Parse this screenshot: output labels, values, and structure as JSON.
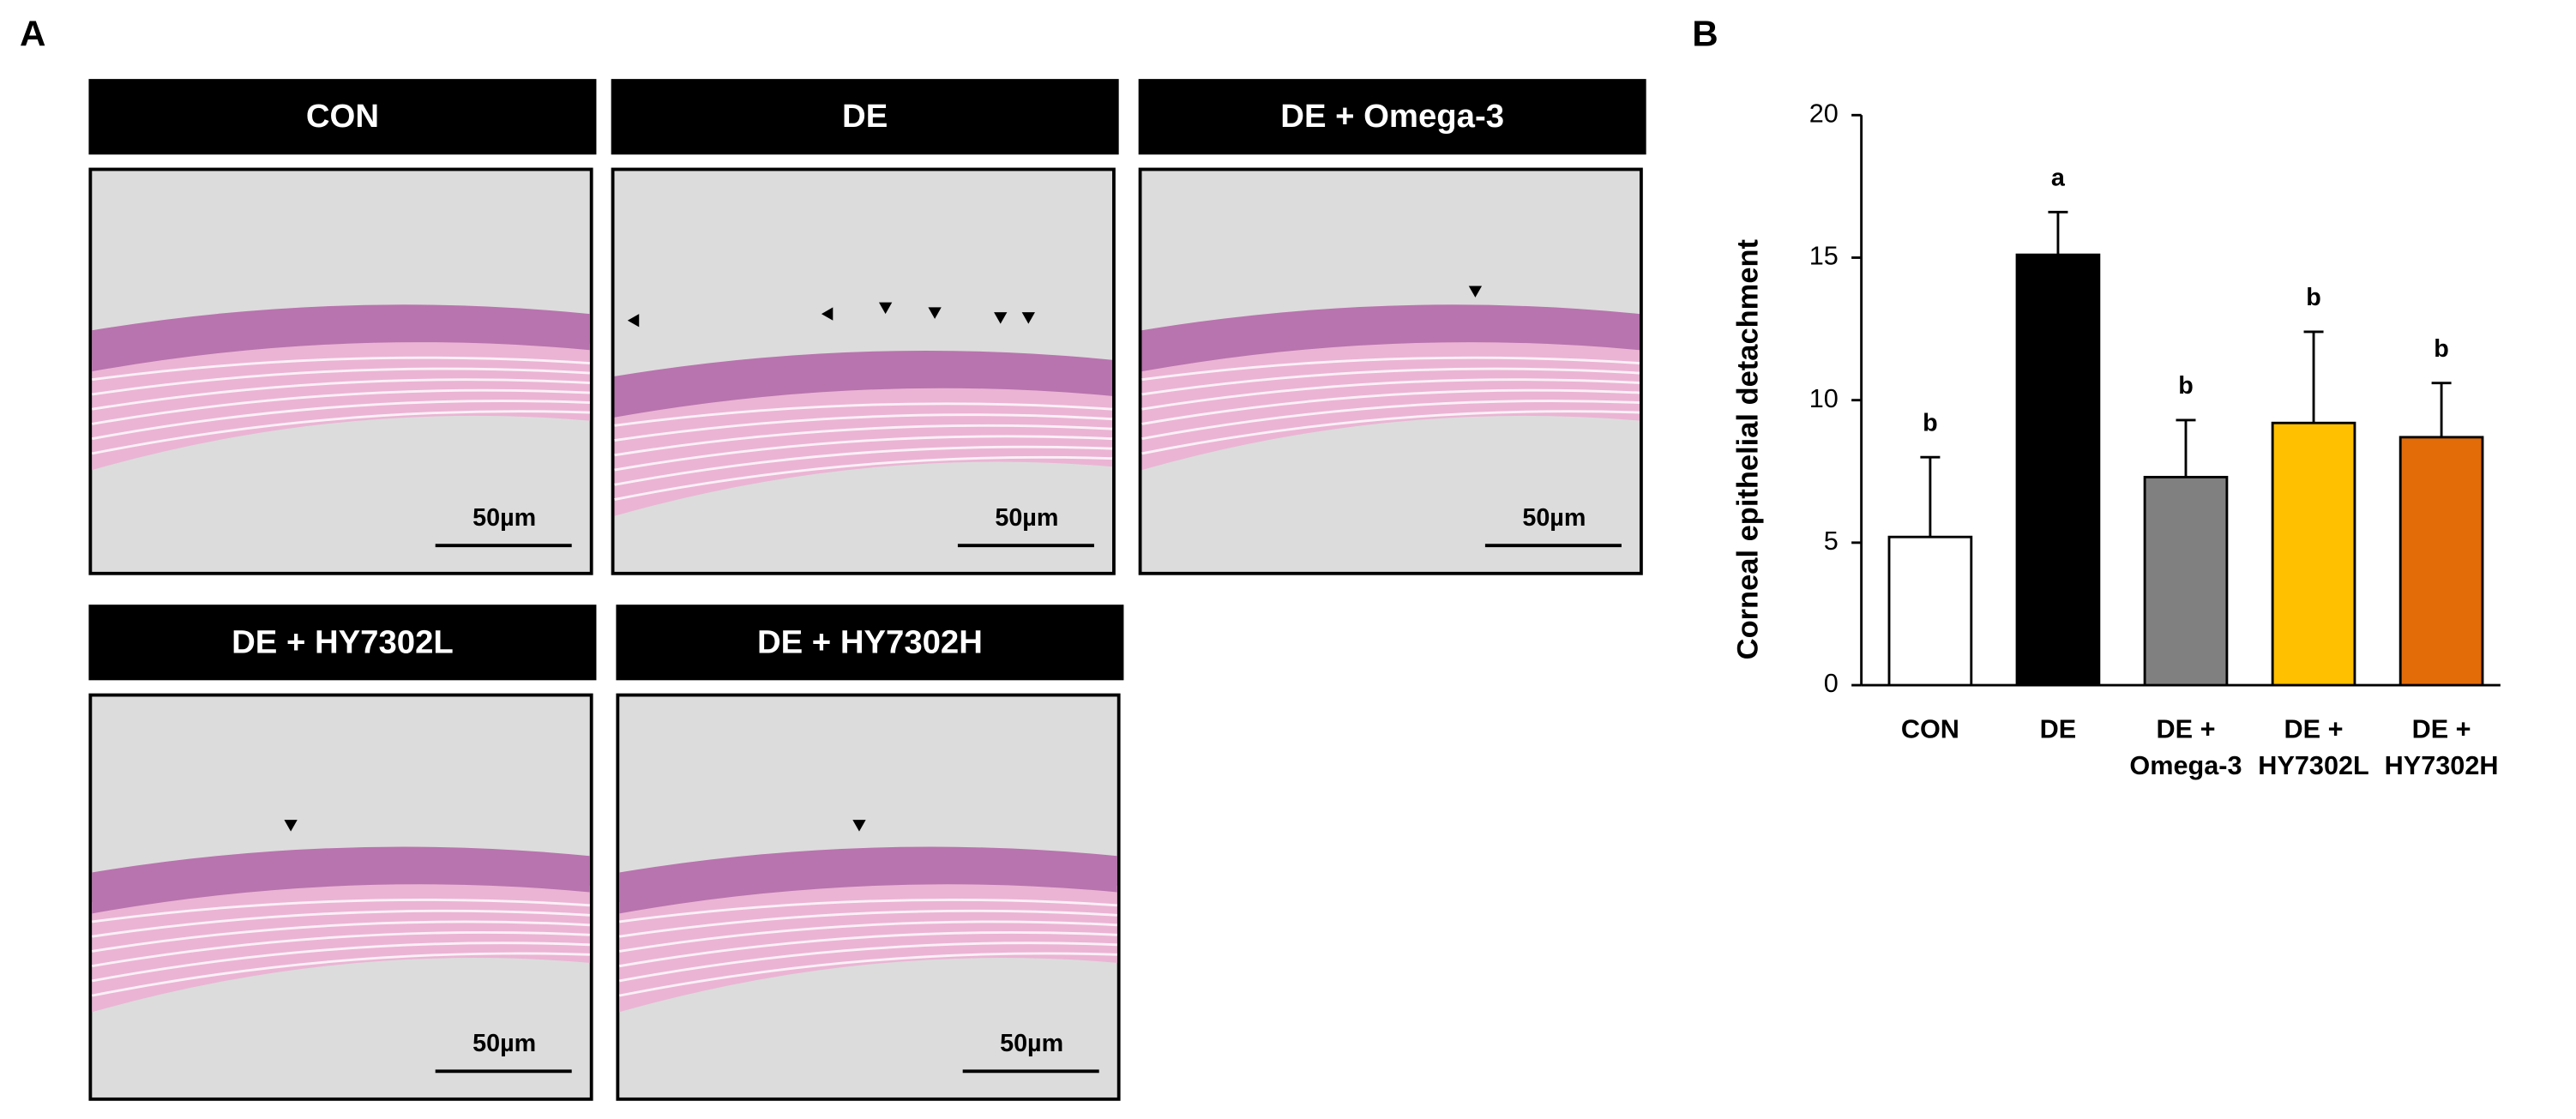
{
  "panel_a": {
    "label": "A",
    "images": [
      {
        "title": "CON",
        "scale_bar": "50µm"
      },
      {
        "title": "DE",
        "scale_bar": "50µm"
      },
      {
        "title": "DE + Omega-3",
        "scale_bar": "50µm"
      },
      {
        "title": "DE + HY7302L",
        "scale_bar": "50µm"
      },
      {
        "title": "DE + HY7302H",
        "scale_bar": "50µm"
      }
    ]
  },
  "chart_data": {
    "type": "bar",
    "panel_label": "B",
    "ylabel": "Corneal epithelial detachment",
    "categories": [
      "CON",
      "DE",
      "DE +\nOmega-3",
      "DE +\nHY7302L",
      "DE +\nHY7302H"
    ],
    "values": [
      5.2,
      15.1,
      7.3,
      9.2,
      8.7
    ],
    "errors": [
      2.8,
      1.5,
      2.0,
      3.2,
      1.9
    ],
    "significance": [
      "b",
      "a",
      "b",
      "b",
      "b"
    ],
    "colors": [
      "#ffffff",
      "#000000",
      "#808080",
      "#ffc000",
      "#e36c09"
    ],
    "ylim": [
      0,
      20
    ],
    "yticks": [
      0,
      5,
      10,
      15,
      20
    ]
  }
}
